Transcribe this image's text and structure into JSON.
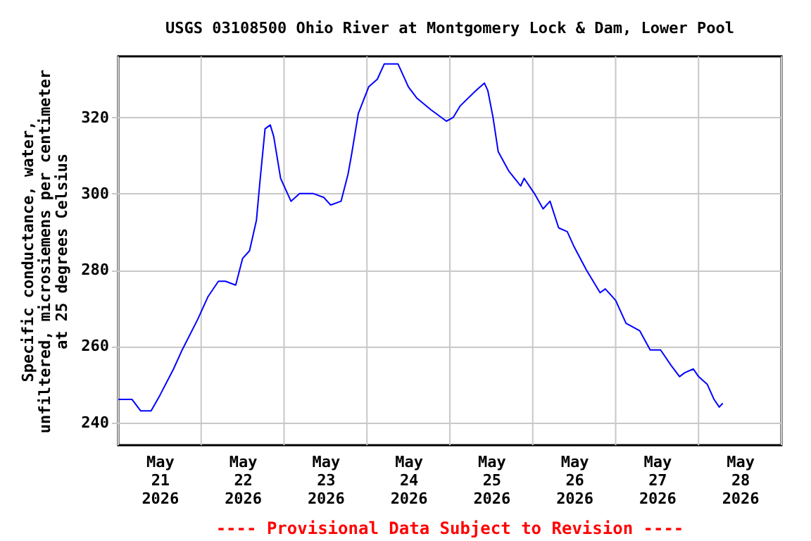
{
  "chart_data": {
    "type": "line",
    "title": "USGS 03108500 Ohio River at Montgomery Lock & Dam, Lower Pool",
    "ylabel": "Specific conductance, water,\nunfiltered, microsiemens per centimeter\nat 25 degrees Celsius",
    "annotations": [
      "---- Provisional Data Subject to Revision ----"
    ],
    "x": [
      "2026-05-21T00:00",
      "2026-05-21T04:00",
      "2026-05-21T06:30",
      "2026-05-21T09:30",
      "2026-05-21T12:00",
      "2026-05-21T16:00",
      "2026-05-21T18:30",
      "2026-05-21T23:00",
      "2026-05-22T02:00",
      "2026-05-22T05:00",
      "2026-05-22T07:00",
      "2026-05-22T10:00",
      "2026-05-22T12:00",
      "2026-05-22T14:00",
      "2026-05-22T16:00",
      "2026-05-22T17:00",
      "2026-05-22T18:30",
      "2026-05-22T20:00",
      "2026-05-22T21:00",
      "2026-05-22T23:00",
      "2026-05-23T02:00",
      "2026-05-23T04:30",
      "2026-05-23T08:30",
      "2026-05-23T11:30",
      "2026-05-23T13:30",
      "2026-05-23T16:30",
      "2026-05-23T18:30",
      "2026-05-23T19:30",
      "2026-05-23T21:30",
      "2026-05-24T00:30",
      "2026-05-24T03:00",
      "2026-05-24T05:00",
      "2026-05-24T09:00",
      "2026-05-24T12:00",
      "2026-05-24T14:30",
      "2026-05-24T18:30",
      "2026-05-24T23:00",
      "2026-05-25T01:00",
      "2026-05-25T03:00",
      "2026-05-25T07:30",
      "2026-05-25T10:00",
      "2026-05-25T11:00",
      "2026-05-25T12:30",
      "2026-05-25T14:00",
      "2026-05-25T17:00",
      "2026-05-25T20:30",
      "2026-05-25T21:30",
      "2026-05-26T00:30",
      "2026-05-26T03:00",
      "2026-05-26T05:00",
      "2026-05-26T07:30",
      "2026-05-26T10:00",
      "2026-05-26T12:00",
      "2026-05-26T15:30",
      "2026-05-26T19:30",
      "2026-05-26T21:00",
      "2026-05-27T00:00",
      "2026-05-27T03:00",
      "2026-05-27T07:00",
      "2026-05-27T10:00",
      "2026-05-27T13:00",
      "2026-05-27T16:00",
      "2026-05-27T18:30",
      "2026-05-27T20:00",
      "2026-05-27T22:30",
      "2026-05-28T00:00",
      "2026-05-28T02:30",
      "2026-05-28T04:30",
      "2026-05-28T06:00",
      "2026-05-28T07:00"
    ],
    "series": [
      {
        "color": "#0000ff",
        "values": [
          246,
          246,
          243,
          243,
          247,
          254,
          259,
          267,
          273,
          277,
          277,
          276,
          283,
          285,
          293,
          303,
          317,
          318,
          315,
          304,
          298,
          300,
          300,
          299,
          297,
          298,
          305,
          310,
          321,
          328,
          330,
          334,
          334,
          328,
          325,
          322,
          319,
          320,
          323,
          327,
          329,
          327,
          320,
          311,
          306,
          302,
          304,
          300,
          296,
          298,
          291,
          290,
          286,
          280,
          274,
          275,
          272,
          266,
          264,
          259,
          259,
          255,
          252,
          253,
          254,
          252,
          250,
          246,
          244,
          245
        ]
      }
    ],
    "xlim": [
      "2026-05-21T00:00",
      "2026-05-29T00:00"
    ],
    "xticks": [
      {
        "value": "2026-05-21T00:00",
        "label": null
      },
      {
        "value": "2026-05-21T12:00",
        "label": "May\n21\n2026"
      },
      {
        "value": "2026-05-22T00:00",
        "label": null
      },
      {
        "value": "2026-05-22T12:00",
        "label": "May\n22\n2026"
      },
      {
        "value": "2026-05-23T00:00",
        "label": null
      },
      {
        "value": "2026-05-23T12:00",
        "label": "May\n23\n2026"
      },
      {
        "value": "2026-05-24T00:00",
        "label": null
      },
      {
        "value": "2026-05-24T12:00",
        "label": "May\n24\n2026"
      },
      {
        "value": "2026-05-25T00:00",
        "label": null
      },
      {
        "value": "2026-05-25T12:00",
        "label": "May\n25\n2026"
      },
      {
        "value": "2026-05-26T00:00",
        "label": null
      },
      {
        "value": "2026-05-26T12:00",
        "label": "May\n26\n2026"
      },
      {
        "value": "2026-05-27T00:00",
        "label": null
      },
      {
        "value": "2026-05-27T12:00",
        "label": "May\n27\n2026"
      },
      {
        "value": "2026-05-28T00:00",
        "label": null
      },
      {
        "value": "2026-05-28T12:00",
        "label": "May\n28\n2026"
      },
      {
        "value": "2026-05-29T00:00",
        "label": null
      }
    ],
    "ylim": [
      234,
      336
    ],
    "yticks": [
      240,
      260,
      280,
      300,
      320
    ],
    "grid": true,
    "line_style": "solid",
    "marker": "none"
  }
}
